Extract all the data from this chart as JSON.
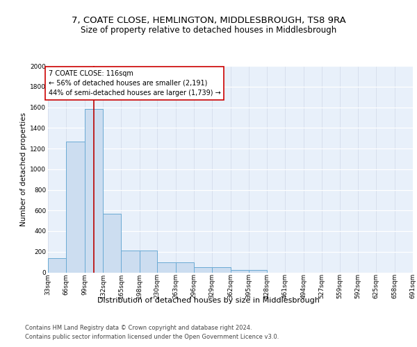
{
  "title": "7, COATE CLOSE, HEMLINGTON, MIDDLESBROUGH, TS8 9RA",
  "subtitle": "Size of property relative to detached houses in Middlesbrough",
  "xlabel": "Distribution of detached houses by size in Middlesbrough",
  "ylabel": "Number of detached properties",
  "bar_color": "#ccddf0",
  "bar_edge_color": "#6aaad4",
  "background_color": "#e8f0fa",
  "grid_color": "#d0d8e8",
  "bin_edges": [
    33,
    66,
    99,
    132,
    165,
    198,
    230,
    263,
    296,
    329,
    362,
    395,
    428,
    461,
    494,
    527,
    559,
    592,
    625,
    658,
    691
  ],
  "bar_heights": [
    140,
    1270,
    1580,
    570,
    215,
    215,
    100,
    100,
    50,
    50,
    25,
    25,
    0,
    0,
    0,
    0,
    0,
    0,
    0,
    0
  ],
  "red_line_x": 116,
  "red_line_color": "#bb0000",
  "annotation_line1": "7 COATE CLOSE: 116sqm",
  "annotation_line2": "← 56% of detached houses are smaller (2,191)",
  "annotation_line3": "44% of semi-detached houses are larger (1,739) →",
  "annotation_box_color": "#ffffff",
  "annotation_box_edge_color": "#cc0000",
  "ylim": [
    0,
    2000
  ],
  "yticks": [
    0,
    200,
    400,
    600,
    800,
    1000,
    1200,
    1400,
    1600,
    1800,
    2000
  ],
  "footnote1": "Contains HM Land Registry data © Crown copyright and database right 2024.",
  "footnote2": "Contains public sector information licensed under the Open Government Licence v3.0.",
  "title_fontsize": 9.5,
  "subtitle_fontsize": 8.5,
  "ylabel_fontsize": 7.5,
  "tick_fontsize": 6.5,
  "xlabel_fontsize": 8,
  "annotation_fontsize": 7,
  "footnote_fontsize": 6
}
